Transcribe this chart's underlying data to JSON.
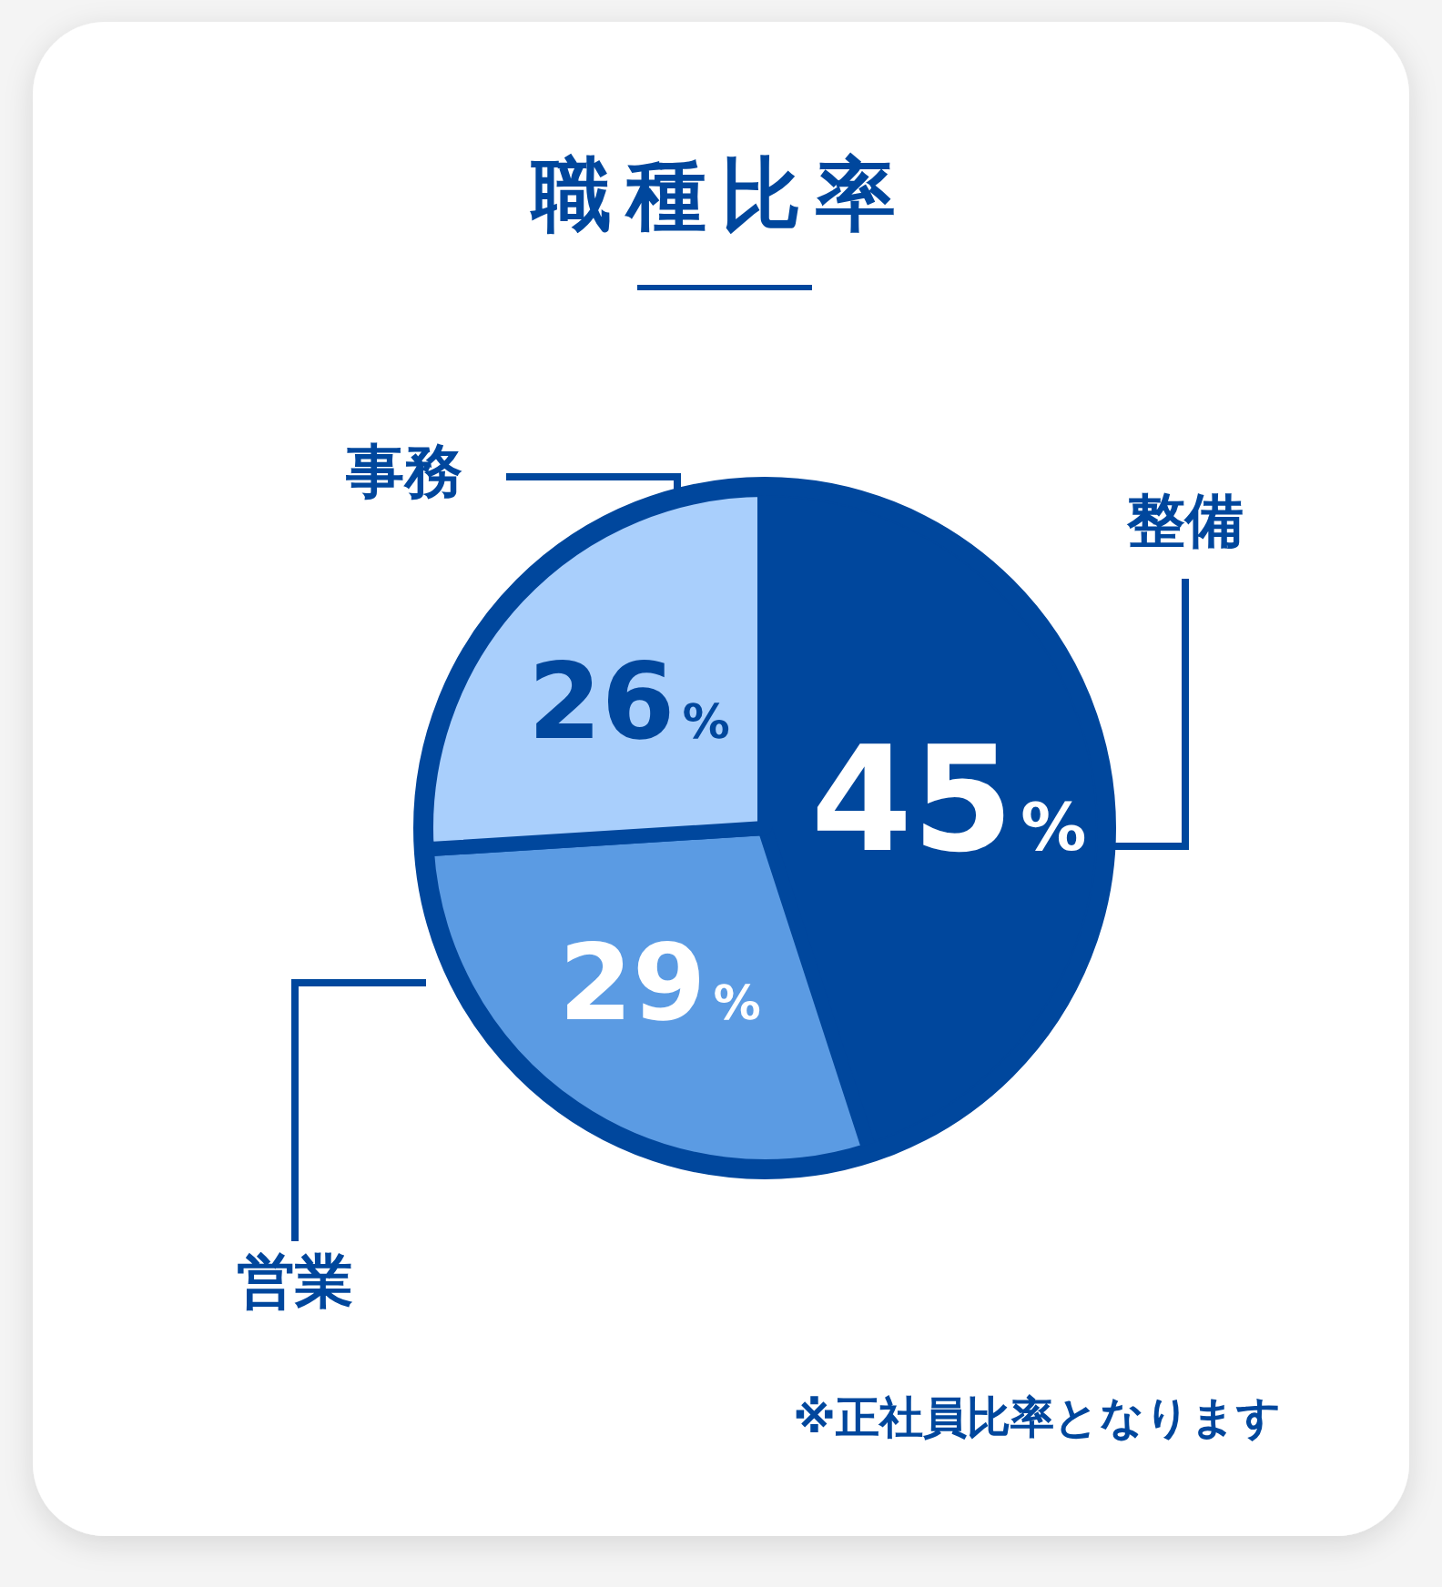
{
  "chart_data": {
    "type": "pie",
    "title": "職種比率",
    "categories": [
      "整備",
      "営業",
      "事務"
    ],
    "values": [
      45,
      29,
      26
    ],
    "colors": [
      "#00479d",
      "#5b9be3",
      "#a9cffc"
    ],
    "value_labels": [
      "45%",
      "29%",
      "26%"
    ],
    "legend": false,
    "annotations": [
      "※正社員比率となります"
    ]
  }
}
